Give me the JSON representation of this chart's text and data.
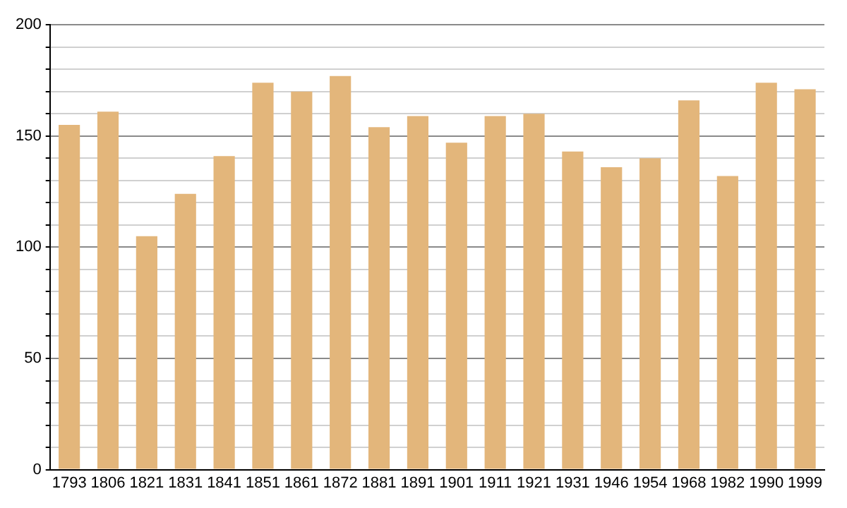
{
  "chart_data": {
    "type": "bar",
    "categories": [
      "1793",
      "1806",
      "1821",
      "1831",
      "1841",
      "1851",
      "1861",
      "1872",
      "1881",
      "1891",
      "1901",
      "1911",
      "1921",
      "1931",
      "1946",
      "1954",
      "1968",
      "1982",
      "1990",
      "1999"
    ],
    "values": [
      155,
      161,
      105,
      124,
      141,
      174,
      170,
      177,
      154,
      159,
      147,
      159,
      160,
      143,
      136,
      140,
      166,
      132,
      174,
      171
    ],
    "color": "#e3b67b",
    "ylim": [
      0,
      200
    ],
    "yticks": [
      0,
      {
        "value": 10,
        "label": null
      },
      {
        "value": 20,
        "label": null
      },
      {
        "value": 30,
        "label": null
      },
      {
        "value": 40,
        "label": null
      },
      50,
      {
        "value": 60,
        "label": null
      },
      {
        "value": 70,
        "label": null
      },
      {
        "value": 80,
        "label": null
      },
      {
        "value": 90,
        "label": null
      },
      100,
      {
        "value": 110,
        "label": null
      },
      {
        "value": 120,
        "label": null
      },
      {
        "value": 130,
        "label": null
      },
      {
        "value": 140,
        "label": null
      },
      150,
      {
        "value": 160,
        "label": null
      },
      {
        "value": 170,
        "label": null
      },
      {
        "value": 180,
        "label": null
      },
      {
        "value": 190,
        "label": null
      },
      200
    ],
    "grid": "y"
  }
}
